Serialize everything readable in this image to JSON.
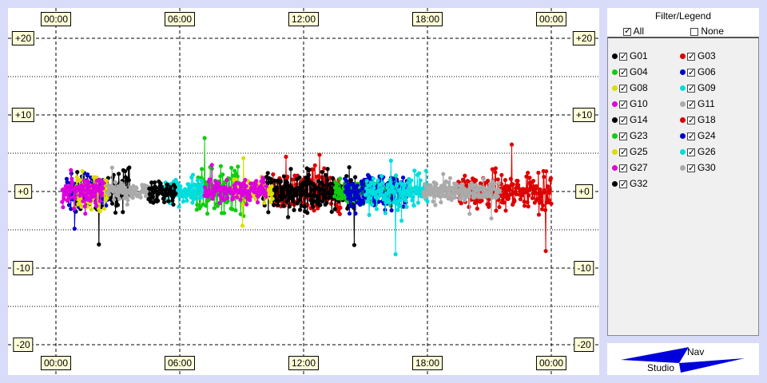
{
  "legend": {
    "title": "Filter/Legend",
    "all_label": "All",
    "none_label": "None",
    "items": [
      {
        "id": "G01",
        "color": "#000000"
      },
      {
        "id": "G03",
        "color": "#dd0000"
      },
      {
        "id": "G04",
        "color": "#11cc11"
      },
      {
        "id": "G06",
        "color": "#0000cc"
      },
      {
        "id": "G08",
        "color": "#dddd00"
      },
      {
        "id": "G09",
        "color": "#00dddd"
      },
      {
        "id": "G10",
        "color": "#dd00dd"
      },
      {
        "id": "G11",
        "color": "#aaaaaa"
      },
      {
        "id": "G14",
        "color": "#000000"
      },
      {
        "id": "G18",
        "color": "#dd0000"
      },
      {
        "id": "G23",
        "color": "#11cc11"
      },
      {
        "id": "G24",
        "color": "#0000cc"
      },
      {
        "id": "G25",
        "color": "#dddd00"
      },
      {
        "id": "G26",
        "color": "#00dddd"
      },
      {
        "id": "G27",
        "color": "#dd00dd"
      },
      {
        "id": "G30",
        "color": "#aaaaaa"
      },
      {
        "id": "G32",
        "color": "#000000"
      }
    ]
  },
  "nav_logo": {
    "nav_label": "Nav",
    "studio_label": "Studio"
  },
  "chart_data": {
    "type": "scatter",
    "x_tick_labels": [
      "00:00",
      "06:00",
      "12:00",
      "18:00",
      "00:00"
    ],
    "x_ticks_hours": [
      0,
      6,
      12,
      18,
      24
    ],
    "y_tick_labels": [
      "+20",
      "+10",
      "+0",
      "-10",
      "-20"
    ],
    "y_ticks": [
      20,
      10,
      0,
      -10,
      -20
    ],
    "ylim": [
      -20,
      20
    ],
    "xlim_hours": [
      0,
      24
    ],
    "grid": true,
    "series": [
      {
        "name": "G01",
        "color": "#000000",
        "start_h": 0.9,
        "end_h": 3.6,
        "spread": 1.8
      },
      {
        "name": "G03",
        "color": "#dd0000",
        "start_h": 10.5,
        "end_h": 13.8,
        "spread": 1.8
      },
      {
        "name": "G04",
        "color": "#11cc11",
        "start_h": 6.8,
        "end_h": 9.2,
        "spread": 2.2
      },
      {
        "name": "G06",
        "color": "#0000cc",
        "start_h": 0.5,
        "end_h": 2.5,
        "spread": 1.5
      },
      {
        "name": "G08",
        "color": "#dddd00",
        "start_h": 0.9,
        "end_h": 2.5,
        "spread": 1.8
      },
      {
        "name": "G09",
        "color": "#00dddd",
        "start_h": 5.2,
        "end_h": 7.2,
        "spread": 1.2
      },
      {
        "name": "G10",
        "color": "#dd00dd",
        "start_h": 0.3,
        "end_h": 2.3,
        "spread": 1.2
      },
      {
        "name": "G11",
        "color": "#aaaaaa",
        "start_h": 2.5,
        "end_h": 5.0,
        "spread": 0.8
      },
      {
        "name": "G14",
        "color": "#000000",
        "start_h": 10.0,
        "end_h": 14.5,
        "spread": 1.7
      },
      {
        "name": "G18",
        "color": "#dd0000",
        "start_h": 19.5,
        "end_h": 24.0,
        "spread": 1.6
      },
      {
        "name": "G23",
        "color": "#11cc11",
        "start_h": 13.5,
        "end_h": 16.5,
        "spread": 1.2
      },
      {
        "name": "G24",
        "color": "#0000cc",
        "start_h": 14.0,
        "end_h": 17.0,
        "spread": 1.5
      },
      {
        "name": "G25",
        "color": "#dddd00",
        "start_h": 8.5,
        "end_h": 10.5,
        "spread": 1.0
      },
      {
        "name": "G26",
        "color": "#00dddd",
        "start_h": 15.0,
        "end_h": 18.0,
        "spread": 1.4
      },
      {
        "name": "G27",
        "color": "#dd00dd",
        "start_h": 7.2,
        "end_h": 10.2,
        "spread": 0.9
      },
      {
        "name": "G30",
        "color": "#aaaaaa",
        "start_h": 17.8,
        "end_h": 21.5,
        "spread": 0.9
      },
      {
        "name": "G32",
        "color": "#000000",
        "start_h": 4.5,
        "end_h": 5.8,
        "spread": 1.0
      }
    ]
  }
}
